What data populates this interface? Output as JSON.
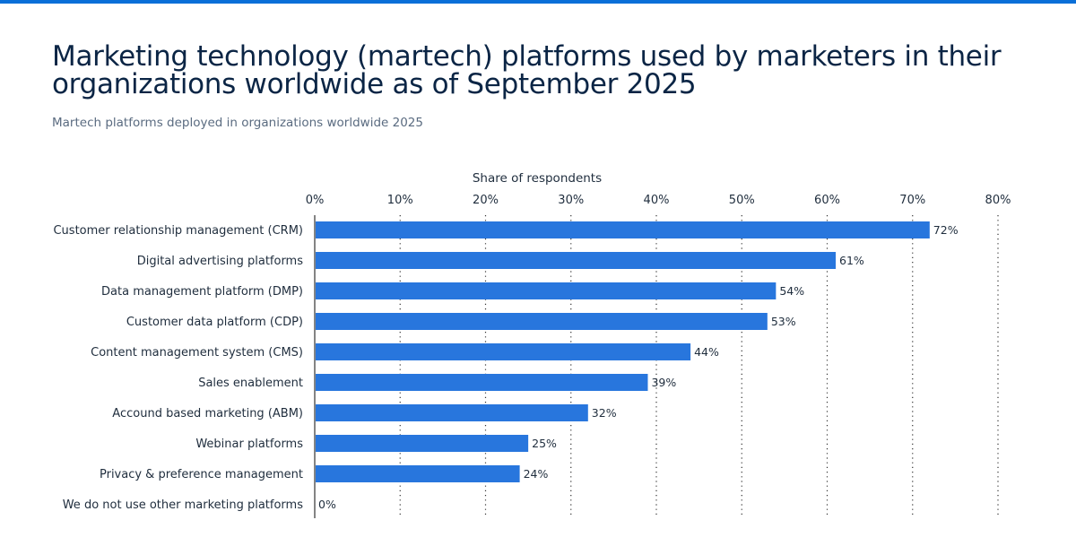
{
  "header": {
    "title": "Marketing technology (martech) platforms used by marketers in their organizations worldwide as of September 2025",
    "subtitle": "Martech platforms deployed in organizations worldwide 2025"
  },
  "chart_data": {
    "type": "bar",
    "orientation": "horizontal",
    "xlabel": "Share of respondents",
    "xlim": [
      0,
      80
    ],
    "ticks": [
      "0%",
      "10%",
      "20%",
      "30%",
      "40%",
      "50%",
      "60%",
      "70%",
      "80%"
    ],
    "grid": "vertical dotted",
    "categories": [
      "Customer relationship management (CRM)",
      "Digital advertising platforms",
      "Data management platform (DMP)",
      "Customer data platform (CDP)",
      "Content management system (CMS)",
      "Sales enablement",
      "Accound based marketing (ABM)",
      "Webinar platforms",
      "Privacy & preference management",
      "We do not use other marketing platforms"
    ],
    "values": [
      72,
      61,
      54,
      53,
      44,
      39,
      32,
      25,
      24,
      0
    ],
    "value_labels": [
      "72%",
      "61%",
      "54%",
      "53%",
      "44%",
      "39%",
      "32%",
      "25%",
      "24%",
      "0%"
    ],
    "bar_color": "#2876dd"
  }
}
